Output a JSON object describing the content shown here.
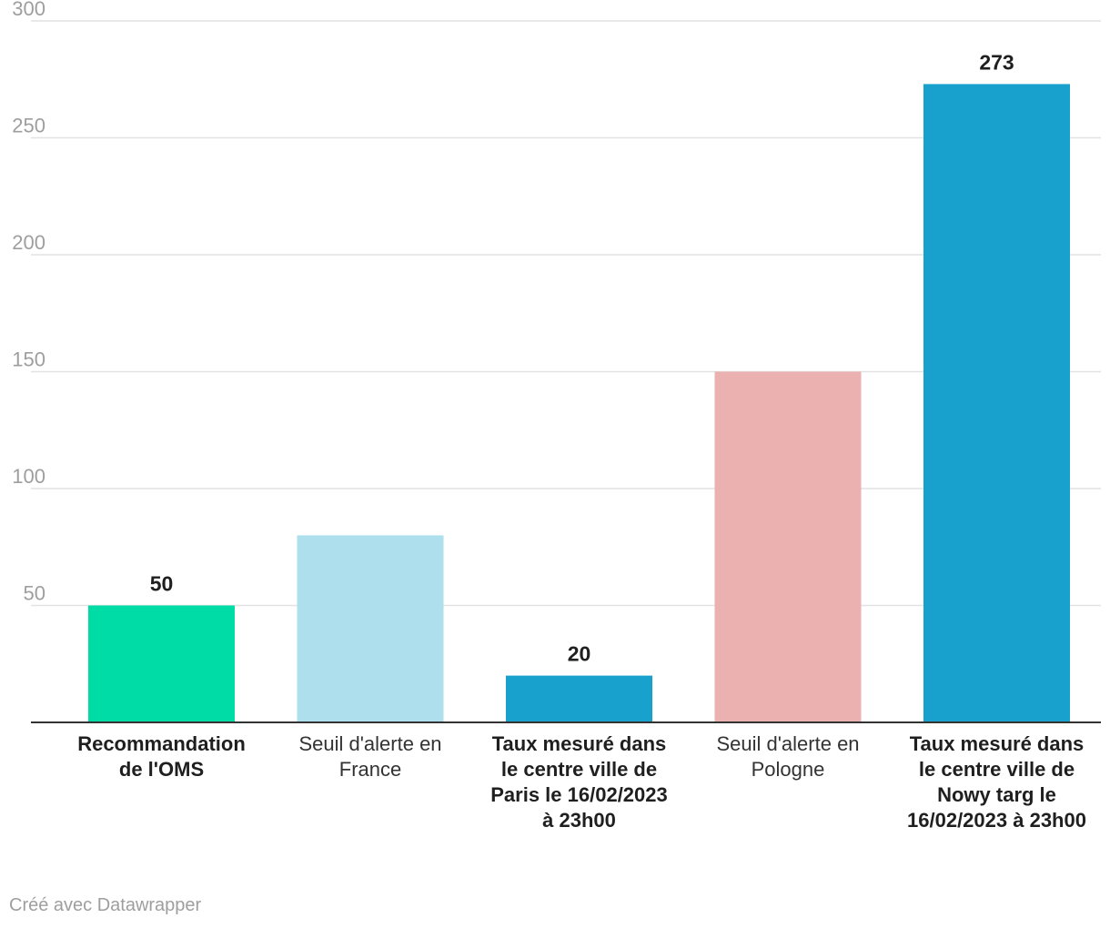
{
  "chart_data": {
    "type": "bar",
    "categories": [
      "Recommandation de l'OMS",
      "Seuil d'alerte en France",
      "Taux mesuré dans le centre ville de Paris le 16/02/2023 à 23h00",
      "Seuil d'alerte en Pologne",
      "Taux mesuré dans le centre ville de Nowy targ le 16/02/2023 à 23h00"
    ],
    "values": [
      50,
      80,
      20,
      150,
      273
    ],
    "value_labels": [
      "50",
      "",
      "20",
      "",
      "273"
    ],
    "bar_colors": [
      "#00dca5",
      "#addfed",
      "#18a1cd",
      "#eab1b0",
      "#18a1cd"
    ],
    "bold_labels": [
      true,
      false,
      true,
      false,
      true
    ],
    "ylim": [
      0,
      300
    ],
    "yticks": [
      50,
      100,
      150,
      200,
      250,
      300
    ],
    "ytick_labels": [
      "50",
      "100",
      "150",
      "200",
      "250",
      "300"
    ],
    "grid": true,
    "title": "",
    "xlabel": "",
    "ylabel": ""
  },
  "footer": {
    "credit": "Créé avec Datawrapper"
  }
}
